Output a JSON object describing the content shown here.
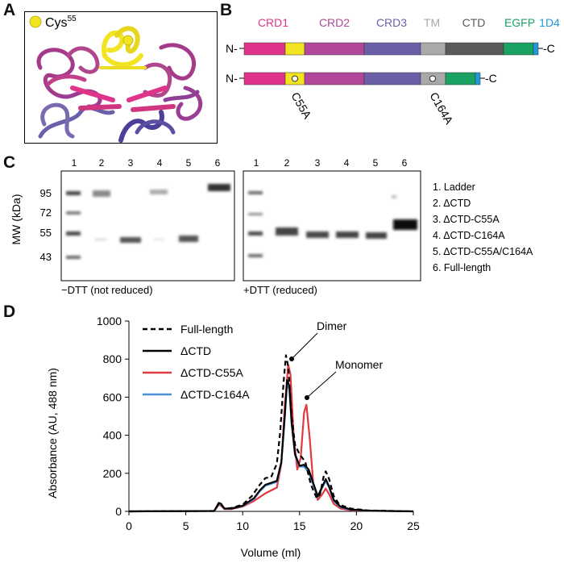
{
  "panels": {
    "a": {
      "letter": "A",
      "legend_label": "Cys",
      "legend_superscript": "55"
    },
    "b": {
      "letter": "B",
      "domains": [
        "CRD1",
        "CRD2",
        "CRD3",
        "TM",
        "CTD",
        "EGFP",
        "1D4"
      ],
      "colors": {
        "CRD1": "#e0348a",
        "CRD2": "#b2479a",
        "CRD3": "#6b60a8",
        "TM": "#a9a9a9",
        "CTD": "#5a5a5a",
        "EGFP": "#1aa262",
        "1D4": "#2299d8",
        "Cys": "#f2e422"
      },
      "n_label": "N-",
      "c_label": "-C",
      "mutation1": "C55A",
      "mutation2": "C164A"
    },
    "c": {
      "letter": "C",
      "ylabel": "MW (kDa)",
      "mw_markers": [
        "95",
        "72",
        "55",
        "43"
      ],
      "lane_numbers": [
        "1",
        "2",
        "3",
        "4",
        "5",
        "6"
      ],
      "left_caption": "−DTT (not reduced)",
      "right_caption": "+DTT (reduced)",
      "legend": [
        "1. Ladder",
        "2. ΔCTD",
        "3. ΔCTD-C55A",
        "4. ΔCTD-C164A",
        "5. ΔCTD-C55A/C164A",
        "6. Full-length"
      ]
    },
    "d": {
      "letter": "D",
      "annotations": {
        "dimer": "Dimer",
        "monomer": "Monomer"
      }
    }
  },
  "chart_data": {
    "type": "line",
    "xlabel": "Volume (ml)",
    "ylabel": "Absorbance (AU, 488 nm)",
    "xlim": [
      0,
      25
    ],
    "ylim": [
      0,
      1000
    ],
    "xticks": [
      "0",
      "5",
      "10",
      "15",
      "20",
      "25"
    ],
    "yticks": [
      "0",
      "200",
      "400",
      "600",
      "800",
      "1000"
    ],
    "legend_position": "top-left",
    "series": [
      {
        "name": "Full-length",
        "color": "#000000",
        "style": "dashed",
        "x": [
          0,
          7.5,
          7.9,
          8.1,
          8.4,
          9,
          10,
          10.8,
          11.5,
          12,
          12.5,
          13,
          13.3,
          13.6,
          13.8,
          14.0,
          14.3,
          14.6,
          15,
          15.5,
          16,
          16.5,
          16.8,
          17.1,
          17.3,
          17.6,
          18,
          18.5,
          19.5,
          21,
          25
        ],
        "y": [
          0,
          2,
          40,
          35,
          15,
          18,
          35,
          80,
          140,
          175,
          180,
          250,
          420,
          680,
          820,
          760,
          500,
          350,
          300,
          260,
          140,
          70,
          90,
          180,
          210,
          170,
          80,
          35,
          15,
          5,
          0
        ]
      },
      {
        "name": "ΔCTD",
        "color": "#000000",
        "style": "solid",
        "x": [
          0,
          7.5,
          7.9,
          8.1,
          8.4,
          9,
          10,
          11,
          11.5,
          12,
          12.5,
          13,
          13.4,
          13.7,
          13.9,
          14.1,
          14.3,
          14.6,
          15,
          15.4,
          15.8,
          16.2,
          16.6,
          17,
          17.3,
          17.6,
          18,
          18.6,
          19.5,
          21,
          25
        ],
        "y": [
          0,
          2,
          45,
          40,
          15,
          15,
          30,
          70,
          110,
          140,
          150,
          160,
          260,
          500,
          690,
          660,
          470,
          300,
          240,
          245,
          220,
          150,
          80,
          130,
          170,
          130,
          60,
          25,
          10,
          4,
          0
        ]
      },
      {
        "name": "ΔCTD-C55A",
        "color": "#e0393f",
        "style": "solid",
        "x": [
          0,
          7.5,
          7.9,
          8.1,
          8.4,
          9,
          10,
          11,
          12,
          12.5,
          13,
          13.4,
          13.7,
          14.0,
          14.2,
          14.5,
          14.8,
          15.1,
          15.4,
          15.6,
          15.9,
          16.2,
          16.6,
          17,
          17.3,
          17.6,
          18,
          18.6,
          19.5,
          21,
          25
        ],
        "y": [
          0,
          2,
          35,
          30,
          12,
          12,
          25,
          55,
          95,
          110,
          125,
          250,
          550,
          770,
          720,
          380,
          220,
          280,
          520,
          560,
          380,
          150,
          60,
          90,
          120,
          90,
          40,
          15,
          6,
          3,
          0
        ]
      },
      {
        "name": "ΔCTD-C164A",
        "color": "#4a90d9",
        "style": "solid",
        "x": [
          0,
          7.5,
          7.9,
          8.1,
          8.4,
          9,
          10,
          11,
          11.5,
          12,
          12.5,
          13,
          13.4,
          13.7,
          13.9,
          14.1,
          14.3,
          14.6,
          15,
          15.4,
          15.8,
          16.2,
          16.6,
          17,
          17.3,
          17.6,
          18,
          18.6,
          19.5,
          21,
          25
        ],
        "y": [
          0,
          2,
          40,
          36,
          14,
          14,
          28,
          65,
          105,
          135,
          145,
          155,
          255,
          490,
          670,
          640,
          460,
          295,
          235,
          235,
          205,
          140,
          75,
          125,
          160,
          125,
          55,
          22,
          9,
          4,
          0
        ]
      }
    ]
  }
}
